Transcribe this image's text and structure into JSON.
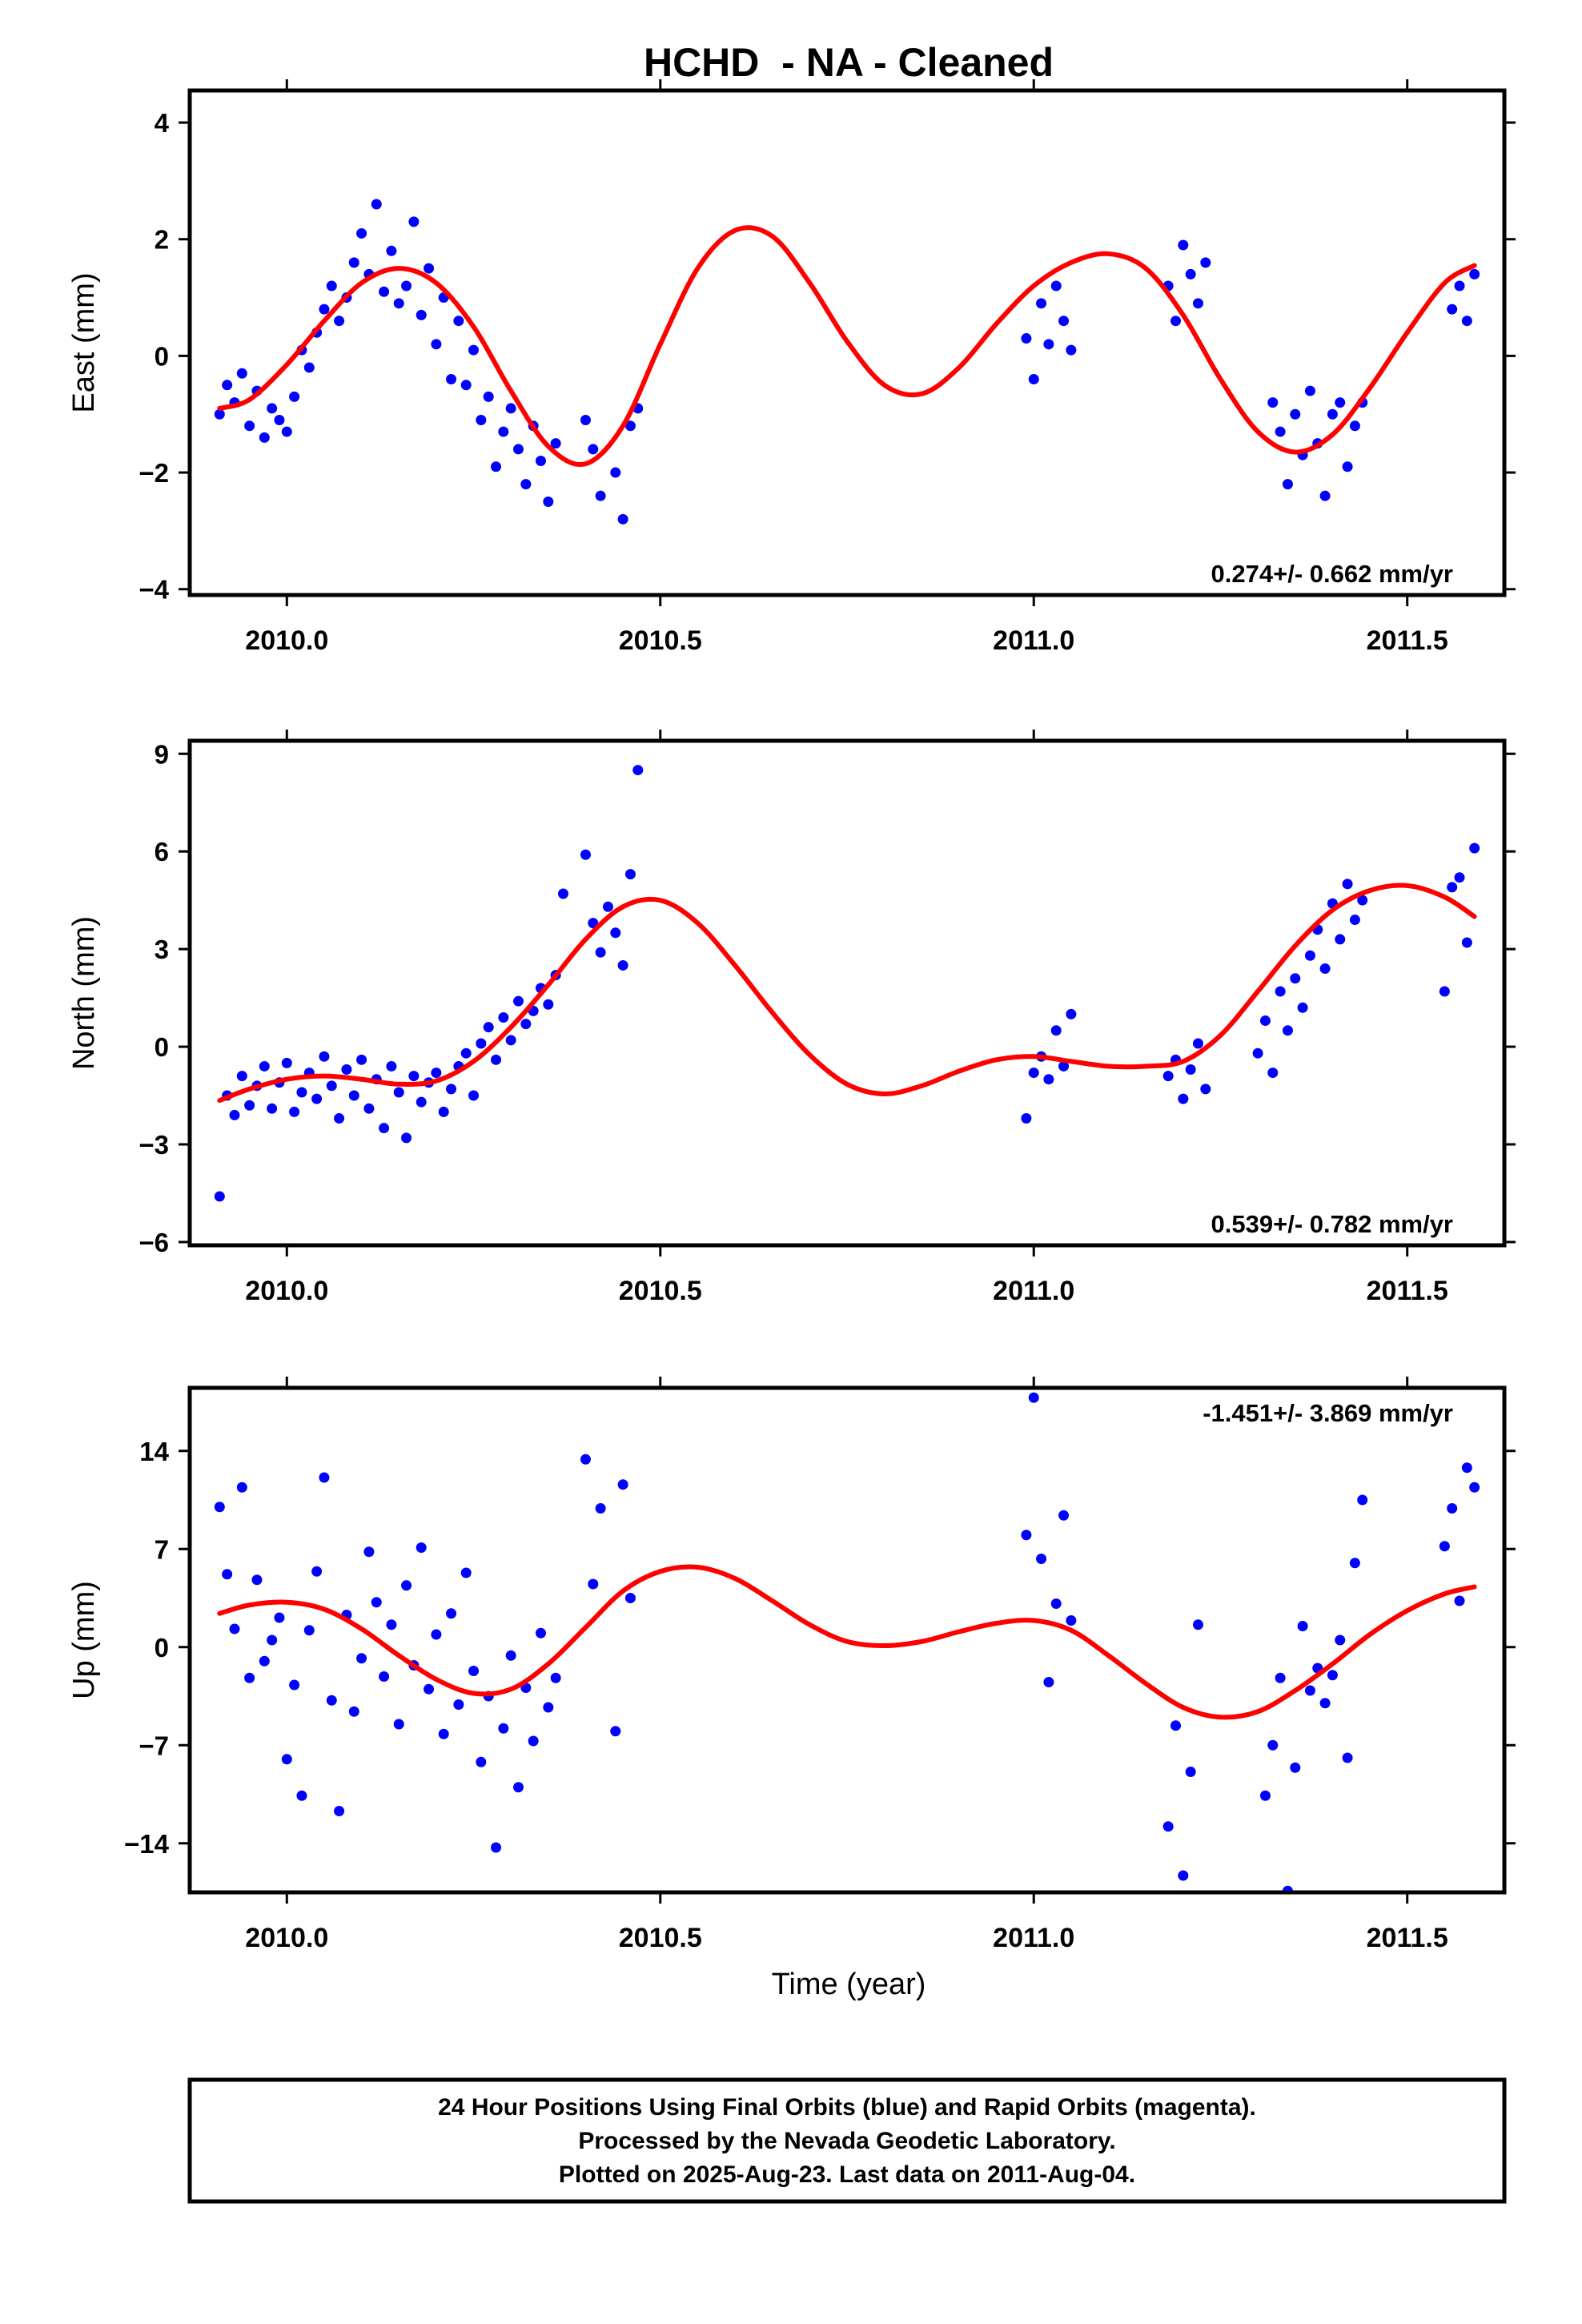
{
  "chart_data": {
    "title": "HCHD  - NA - Cleaned",
    "type": "scatter",
    "xlabel": "Time (year)",
    "xlim": [
      2009.87,
      2011.63
    ],
    "xticks": [
      2010.0,
      2010.5,
      2011.0,
      2011.5
    ],
    "xtick_labels": [
      "2010.0",
      "2010.5",
      "2011.0",
      "2011.5"
    ],
    "point_color": "#0000ff",
    "fit_color": "#ff0000",
    "panels": [
      {
        "id": "east",
        "ylabel": "East (mm)",
        "ylim": [
          -4.1,
          4.55
        ],
        "yticks": [
          -4,
          -2,
          0,
          2,
          4
        ],
        "ytick_labels": [
          "−4",
          "−2",
          "0",
          "2",
          "4"
        ],
        "rate_text": "0.274+/- 0.662 mm/yr",
        "rate_position": "bottom-right",
        "series": [
          {
            "type": "scatter",
            "x": [
              2009.91,
              2009.92,
              2009.93,
              2009.94,
              2009.95,
              2009.96,
              2009.97,
              2009.98,
              2009.99,
              2010.0,
              2010.01,
              2010.02,
              2010.03,
              2010.04,
              2010.05,
              2010.06,
              2010.07,
              2010.08,
              2010.09,
              2010.1,
              2010.11,
              2010.12,
              2010.13,
              2010.14,
              2010.15,
              2010.16,
              2010.17,
              2010.18,
              2010.19,
              2010.2,
              2010.21,
              2010.22,
              2010.23,
              2010.24,
              2010.25,
              2010.26,
              2010.27,
              2010.28,
              2010.29,
              2010.3,
              2010.31,
              2010.32,
              2010.33,
              2010.34,
              2010.35,
              2010.36,
              2010.4,
              2010.41,
              2010.42,
              2010.44,
              2010.45,
              2010.46,
              2010.47,
              2010.99,
              2011.0,
              2011.01,
              2011.02,
              2011.03,
              2011.04,
              2011.05,
              2011.18,
              2011.19,
              2011.2,
              2011.21,
              2011.22,
              2011.23,
              2011.32,
              2011.33,
              2011.34,
              2011.35,
              2011.36,
              2011.37,
              2011.38,
              2011.39,
              2011.4,
              2011.41,
              2011.42,
              2011.43,
              2011.44,
              2011.56,
              2011.57,
              2011.58,
              2011.59
            ],
            "y": [
              -1.0,
              -0.5,
              -0.8,
              -0.3,
              -1.2,
              -0.6,
              -1.4,
              -0.9,
              -1.1,
              -1.3,
              -0.7,
              0.1,
              -0.2,
              0.4,
              0.8,
              1.2,
              0.6,
              1.0,
              1.6,
              2.1,
              1.4,
              2.6,
              1.1,
              1.8,
              0.9,
              1.2,
              2.3,
              0.7,
              1.5,
              0.2,
              1.0,
              -0.4,
              0.6,
              -0.5,
              0.1,
              -1.1,
              -0.7,
              -1.9,
              -1.3,
              -0.9,
              -1.6,
              -2.2,
              -1.2,
              -1.8,
              -2.5,
              -1.5,
              -1.1,
              -1.6,
              -2.4,
              -2.0,
              -2.8,
              -1.2,
              -0.9,
              0.3,
              -0.4,
              0.9,
              0.2,
              1.2,
              0.6,
              0.1,
              1.2,
              0.6,
              1.9,
              1.4,
              0.9,
              1.6,
              -0.8,
              -1.3,
              -2.2,
              -1.0,
              -1.7,
              -0.6,
              -1.5,
              -2.4,
              -1.0,
              -0.8,
              -1.9,
              -1.2,
              -0.8,
              0.8,
              1.2,
              0.6,
              1.4
            ]
          },
          {
            "type": "fit",
            "x": [
              2009.91,
              2009.95,
              2010.0,
              2010.05,
              2010.1,
              2010.15,
              2010.2,
              2010.25,
              2010.3,
              2010.35,
              2010.4,
              2010.45,
              2010.5,
              2010.55,
              2010.6,
              2010.65,
              2010.7,
              2010.75,
              2010.8,
              2010.85,
              2010.9,
              2010.95,
              2011.0,
              2011.05,
              2011.1,
              2011.15,
              2011.2,
              2011.25,
              2011.3,
              2011.35,
              2011.4,
              2011.45,
              2011.5,
              2011.55,
              2011.59
            ],
            "y": [
              -0.9,
              -0.75,
              -0.15,
              0.6,
              1.25,
              1.5,
              1.25,
              0.5,
              -0.6,
              -1.55,
              -1.85,
              -1.2,
              0.2,
              1.5,
              2.15,
              2.05,
              1.25,
              0.25,
              -0.5,
              -0.65,
              -0.2,
              0.55,
              1.2,
              1.6,
              1.75,
              1.5,
              0.7,
              -0.4,
              -1.3,
              -1.65,
              -1.35,
              -0.55,
              0.4,
              1.25,
              1.55
            ]
          }
        ]
      },
      {
        "id": "north",
        "ylabel": "North (mm)",
        "ylim": [
          -6.1,
          9.4
        ],
        "yticks": [
          -6,
          -3,
          0,
          3,
          6,
          9
        ],
        "ytick_labels": [
          "−6",
          "−3",
          "0",
          "3",
          "6",
          "9"
        ],
        "rate_text": "0.539+/- 0.782 mm/yr",
        "rate_position": "bottom-right",
        "series": [
          {
            "type": "scatter",
            "x": [
              2009.91,
              2009.92,
              2009.93,
              2009.94,
              2009.95,
              2009.96,
              2009.97,
              2009.98,
              2009.99,
              2010.0,
              2010.01,
              2010.02,
              2010.03,
              2010.04,
              2010.05,
              2010.06,
              2010.07,
              2010.08,
              2010.09,
              2010.1,
              2010.11,
              2010.12,
              2010.13,
              2010.14,
              2010.15,
              2010.16,
              2010.17,
              2010.18,
              2010.19,
              2010.2,
              2010.21,
              2010.22,
              2010.23,
              2010.24,
              2010.25,
              2010.26,
              2010.27,
              2010.28,
              2010.29,
              2010.3,
              2010.31,
              2010.32,
              2010.33,
              2010.34,
              2010.35,
              2010.36,
              2010.37,
              2010.4,
              2010.41,
              2010.42,
              2010.43,
              2010.44,
              2010.45,
              2010.46,
              2010.47,
              2010.99,
              2011.0,
              2011.01,
              2011.02,
              2011.03,
              2011.04,
              2011.05,
              2011.18,
              2011.19,
              2011.2,
              2011.21,
              2011.22,
              2011.23,
              2011.3,
              2011.31,
              2011.32,
              2011.33,
              2011.34,
              2011.35,
              2011.36,
              2011.37,
              2011.38,
              2011.39,
              2011.4,
              2011.41,
              2011.42,
              2011.43,
              2011.44,
              2011.55,
              2011.56,
              2011.57,
              2011.58,
              2011.59
            ],
            "y": [
              -4.6,
              -1.5,
              -2.1,
              -0.9,
              -1.8,
              -1.2,
              -0.6,
              -1.9,
              -1.1,
              -0.5,
              -2.0,
              -1.4,
              -0.8,
              -1.6,
              -0.3,
              -1.2,
              -2.2,
              -0.7,
              -1.5,
              -0.4,
              -1.9,
              -1.0,
              -2.5,
              -0.6,
              -1.4,
              -2.8,
              -0.9,
              -1.7,
              -1.1,
              -0.8,
              -2.0,
              -1.3,
              -0.6,
              -0.2,
              -1.5,
              0.1,
              0.6,
              -0.4,
              0.9,
              0.2,
              1.4,
              0.7,
              1.1,
              1.8,
              1.3,
              2.2,
              4.7,
              5.9,
              3.8,
              2.9,
              4.3,
              3.5,
              2.5,
              5.3,
              8.5,
              -2.2,
              -0.8,
              -0.3,
              -1.0,
              0.5,
              -0.6,
              1.0,
              -0.9,
              -0.4,
              -1.6,
              -0.7,
              0.1,
              -1.3,
              -0.2,
              0.8,
              -0.8,
              1.7,
              0.5,
              2.1,
              1.2,
              2.8,
              3.6,
              2.4,
              4.4,
              3.3,
              5.0,
              3.9,
              4.5,
              1.7,
              4.9,
              5.2,
              3.2,
              6.1
            ]
          },
          {
            "type": "fit",
            "x": [
              2009.91,
              2009.95,
              2010.0,
              2010.05,
              2010.1,
              2010.15,
              2010.2,
              2010.25,
              2010.3,
              2010.35,
              2010.4,
              2010.45,
              2010.5,
              2010.55,
              2010.6,
              2010.65,
              2010.7,
              2010.75,
              2010.8,
              2010.85,
              2010.9,
              2010.95,
              2011.0,
              2011.05,
              2011.1,
              2011.15,
              2011.2,
              2011.25,
              2011.3,
              2011.35,
              2011.4,
              2011.45,
              2011.5,
              2011.55,
              2011.59
            ],
            "y": [
              -1.65,
              -1.3,
              -1.0,
              -0.9,
              -1.0,
              -1.15,
              -1.05,
              -0.45,
              0.6,
              1.9,
              3.3,
              4.3,
              4.5,
              3.8,
              2.5,
              1.05,
              -0.25,
              -1.15,
              -1.45,
              -1.2,
              -0.75,
              -0.4,
              -0.3,
              -0.45,
              -0.6,
              -0.6,
              -0.45,
              0.35,
              1.7,
              3.1,
              4.2,
              4.8,
              4.95,
              4.6,
              4.0
            ]
          }
        ]
      },
      {
        "id": "up",
        "ylabel": "Up (mm)",
        "ylim": [
          -17.5,
          18.5
        ],
        "yticks": [
          -14,
          -7,
          0,
          7,
          14
        ],
        "ytick_labels": [
          "−14",
          "−7",
          "0",
          "7",
          "14"
        ],
        "rate_text": "-1.451+/- 3.869 mm/yr",
        "rate_position": "top-right",
        "series": [
          {
            "type": "scatter",
            "x": [
              2009.91,
              2009.92,
              2009.93,
              2009.94,
              2009.95,
              2009.96,
              2009.97,
              2009.98,
              2009.99,
              2010.0,
              2010.01,
              2010.02,
              2010.03,
              2010.04,
              2010.05,
              2010.06,
              2010.07,
              2010.08,
              2010.09,
              2010.1,
              2010.11,
              2010.12,
              2010.13,
              2010.14,
              2010.15,
              2010.16,
              2010.17,
              2010.18,
              2010.19,
              2010.2,
              2010.21,
              2010.22,
              2010.23,
              2010.24,
              2010.25,
              2010.26,
              2010.27,
              2010.28,
              2010.29,
              2010.3,
              2010.31,
              2010.32,
              2010.33,
              2010.34,
              2010.35,
              2010.36,
              2010.4,
              2010.41,
              2010.42,
              2010.44,
              2010.45,
              2010.46,
              2010.99,
              2011.0,
              2011.01,
              2011.02,
              2011.03,
              2011.04,
              2011.05,
              2011.18,
              2011.19,
              2011.2,
              2011.21,
              2011.22,
              2011.31,
              2011.32,
              2011.33,
              2011.34,
              2011.35,
              2011.36,
              2011.37,
              2011.38,
              2011.39,
              2011.4,
              2011.41,
              2011.42,
              2011.43,
              2011.44,
              2011.55,
              2011.56,
              2011.57,
              2011.58,
              2011.59
            ],
            "y": [
              10.0,
              5.2,
              1.3,
              11.4,
              -2.2,
              4.8,
              -1.0,
              0.5,
              2.1,
              -8.0,
              -2.7,
              -10.6,
              1.2,
              5.4,
              12.1,
              -3.8,
              -11.7,
              2.3,
              -4.6,
              -0.8,
              6.8,
              3.2,
              -2.1,
              1.6,
              -5.5,
              4.4,
              -1.3,
              7.1,
              -3.0,
              0.9,
              -6.2,
              2.4,
              -4.1,
              5.3,
              -1.7,
              -8.2,
              -3.5,
              -14.3,
              -5.8,
              -0.6,
              -10.0,
              -2.9,
              -6.7,
              1.0,
              -4.3,
              -2.2,
              13.4,
              4.5,
              9.9,
              -6.0,
              11.6,
              3.5,
              8.0,
              17.8,
              6.3,
              -2.5,
              3.1,
              9.4,
              1.9,
              -12.8,
              -5.6,
              -16.3,
              -8.9,
              1.6,
              -10.6,
              -7.0,
              -2.2,
              -17.4,
              -8.6,
              1.5,
              -3.1,
              -1.5,
              -4.0,
              -2.0,
              0.5,
              -7.9,
              6.0,
              10.5,
              7.2,
              9.9,
              3.3,
              12.8,
              11.4
            ]
          },
          {
            "type": "fit",
            "x": [
              2009.91,
              2009.95,
              2010.0,
              2010.05,
              2010.1,
              2010.15,
              2010.2,
              2010.25,
              2010.3,
              2010.35,
              2010.4,
              2010.45,
              2010.5,
              2010.55,
              2010.6,
              2010.65,
              2010.7,
              2010.75,
              2010.8,
              2010.85,
              2010.9,
              2010.95,
              2011.0,
              2011.05,
              2011.1,
              2011.15,
              2011.2,
              2011.25,
              2011.3,
              2011.35,
              2011.4,
              2011.45,
              2011.5,
              2011.55,
              2011.59
            ],
            "y": [
              2.4,
              3.0,
              3.2,
              2.7,
              1.3,
              -0.6,
              -2.3,
              -3.3,
              -3.0,
              -1.2,
              1.4,
              4.0,
              5.4,
              5.7,
              4.9,
              3.3,
              1.6,
              0.4,
              0.1,
              0.4,
              1.1,
              1.7,
              1.9,
              1.2,
              -0.6,
              -2.6,
              -4.3,
              -5.0,
              -4.6,
              -3.1,
              -1.2,
              0.9,
              2.6,
              3.8,
              4.3
            ]
          }
        ]
      }
    ],
    "caption": [
      "24 Hour Positions Using Final Orbits (blue) and Rapid Orbits (magenta).",
      "Processed by the Nevada Geodetic Laboratory.",
      "Plotted on 2025-Aug-23. Last data on 2011-Aug-04."
    ]
  }
}
